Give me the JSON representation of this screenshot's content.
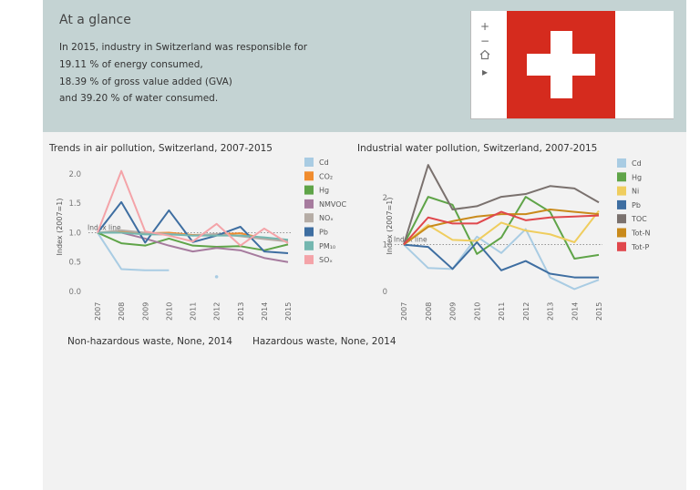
{
  "glance": {
    "title": "At a glance",
    "line1": "In 2015, industry in Switzerland was responsible for",
    "line2": "19.11 % of energy consumed,",
    "line3": "18.39 % of gross value added (GVA)",
    "line4": "and 39.20 % of water consumed."
  },
  "map_controls": {
    "zoom_in": "+",
    "zoom_out": "−",
    "play": "▸"
  },
  "flag_colors": {
    "red": "#d52b1e",
    "white": "#ffffff"
  },
  "waste": {
    "non_hazardous": "Non-hazardous waste, None, 2014",
    "hazardous": "Hazardous waste, None, 2014"
  },
  "chart_data": [
    {
      "type": "line",
      "title": "Trends in air pollution, Switzerland, 2007-2015",
      "xlabel": "",
      "ylabel": "Index (2007=1)",
      "x": [
        "2007",
        "2008",
        "2009",
        "2010",
        "2011",
        "2012",
        "2013",
        "2014",
        "2015"
      ],
      "ylim": [
        0,
        2.2
      ],
      "yticks": [
        "0.0",
        "0.5",
        "1.0",
        "1.5",
        "2.0"
      ],
      "index_line": {
        "value": 1,
        "label": "Index line"
      },
      "legend_position": "right",
      "series": [
        {
          "name": "Cd",
          "color": "#a9cce3",
          "values": [
            1.0,
            0.38,
            0.36,
            0.36,
            null,
            0.25,
            null,
            null,
            null
          ]
        },
        {
          "name": "CO₂",
          "color": "#f08c2e",
          "values": [
            1.0,
            1.02,
            0.99,
            1.0,
            0.96,
            0.97,
            0.99,
            0.9,
            0.87
          ]
        },
        {
          "name": "Hg",
          "color": "#5fa448",
          "values": [
            1.0,
            0.82,
            0.78,
            0.9,
            0.78,
            0.76,
            0.77,
            0.7,
            0.8
          ]
        },
        {
          "name": "NMVOC",
          "color": "#a67b9e",
          "values": [
            1.0,
            1.0,
            0.9,
            0.78,
            0.68,
            0.74,
            0.7,
            0.57,
            0.5
          ]
        },
        {
          "name": "NOₓ",
          "color": "#b5aca5",
          "values": [
            1.0,
            1.04,
            1.0,
            0.98,
            0.95,
            0.98,
            0.94,
            0.89,
            0.85
          ]
        },
        {
          "name": "Pb",
          "color": "#3e6ea1",
          "values": [
            1.0,
            1.52,
            0.83,
            1.38,
            0.84,
            0.95,
            1.1,
            0.68,
            0.65
          ]
        },
        {
          "name": "PM₁₀",
          "color": "#74b7b0",
          "values": [
            1.0,
            1.0,
            0.97,
            0.97,
            0.95,
            0.95,
            0.95,
            0.92,
            0.88
          ]
        },
        {
          "name": "SOₓ",
          "color": "#f4a3a8",
          "values": [
            1.0,
            2.05,
            1.02,
            0.95,
            0.85,
            1.15,
            0.78,
            1.07,
            0.82
          ]
        }
      ]
    },
    {
      "type": "line",
      "title": "Industrial water pollution, Switzerland, 2007-2015",
      "xlabel": "",
      "ylabel": "Index (2007=1)",
      "x": [
        "2007",
        "2008",
        "2009",
        "2010",
        "2011",
        "2012",
        "2013",
        "2014",
        "2015"
      ],
      "ylim": [
        0,
        2.8
      ],
      "yticks": [
        "0",
        "1",
        "2"
      ],
      "index_line": {
        "value": 1,
        "label": "Index line"
      },
      "legend_position": "right",
      "series": [
        {
          "name": "Cd",
          "color": "#a9cce3",
          "values": [
            1.0,
            0.5,
            0.48,
            1.17,
            0.82,
            1.33,
            0.3,
            0.05,
            0.25
          ]
        },
        {
          "name": "Hg",
          "color": "#5fa448",
          "values": [
            1.0,
            2.02,
            1.85,
            0.8,
            1.15,
            2.02,
            1.7,
            0.7,
            0.78
          ]
        },
        {
          "name": "Ni",
          "color": "#efcd5e",
          "values": [
            1.0,
            1.42,
            1.1,
            1.08,
            1.47,
            1.3,
            1.22,
            1.05,
            1.72
          ]
        },
        {
          "name": "Pb",
          "color": "#3e6ea1",
          "values": [
            1.0,
            0.95,
            0.48,
            1.05,
            0.45,
            0.65,
            0.38,
            0.3,
            0.3
          ]
        },
        {
          "name": "TOC",
          "color": "#7a716e",
          "values": [
            1.0,
            2.7,
            1.75,
            1.82,
            2.02,
            2.08,
            2.25,
            2.2,
            1.9
          ]
        },
        {
          "name": "Tot-N",
          "color": "#c98a1b",
          "values": [
            1.0,
            1.38,
            1.5,
            1.6,
            1.65,
            1.65,
            1.75,
            1.7,
            1.65
          ]
        },
        {
          "name": "Tot-P",
          "color": "#e0474c",
          "values": [
            1.0,
            1.58,
            1.45,
            1.45,
            1.7,
            1.52,
            1.58,
            1.6,
            1.62
          ]
        }
      ]
    }
  ]
}
